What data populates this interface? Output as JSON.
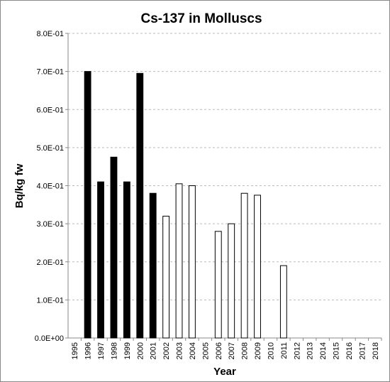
{
  "chart_data": {
    "type": "bar",
    "title": "Cs-137 in Molluscs",
    "x_label": "Year",
    "y_label": "Bq/kg fw",
    "categories": [
      "1995",
      "1996",
      "1997",
      "1998",
      "1999",
      "2000",
      "2001",
      "2002",
      "2003",
      "2004",
      "2005",
      "2006",
      "2007",
      "2008",
      "2009",
      "2010",
      "2011",
      "2012",
      "2013",
      "2014",
      "2015",
      "2016",
      "2017",
      "2018"
    ],
    "values": [
      null,
      0.7,
      0.41,
      0.475,
      0.41,
      0.695,
      0.38,
      0.32,
      0.405,
      0.4,
      null,
      0.28,
      0.3,
      0.38,
      0.375,
      null,
      0.19,
      null,
      null,
      null,
      null,
      null,
      null,
      null
    ],
    "colors": [
      "#000000",
      "#000000",
      "#000000",
      "#000000",
      "#000000",
      "#000000",
      "#000000",
      "#ffffff",
      "#ffffff",
      "#ffffff",
      "#ffffff",
      "#ffffff",
      "#ffffff",
      "#ffffff",
      "#ffffff",
      "#ffffff",
      "#ffffff",
      "#ffffff",
      "#ffffff",
      "#ffffff",
      "#ffffff",
      "#ffffff",
      "#ffffff",
      "#ffffff"
    ],
    "ylim": [
      0,
      0.8
    ],
    "yticks": [
      {
        "value": 0,
        "label": "0.0E+00"
      },
      {
        "value": 0.1,
        "label": "1.0E-01"
      },
      {
        "value": 0.2,
        "label": "2.0E-01"
      },
      {
        "value": 0.3,
        "label": "3.0E-01"
      },
      {
        "value": 0.4,
        "label": "4.0E-01"
      },
      {
        "value": 0.5,
        "label": "5.0E-01"
      },
      {
        "value": 0.6,
        "label": "6.0E-01"
      },
      {
        "value": 0.7,
        "label": "7.0E-01"
      },
      {
        "value": 0.8,
        "label": "8.0E-01"
      }
    ],
    "grid": true
  }
}
